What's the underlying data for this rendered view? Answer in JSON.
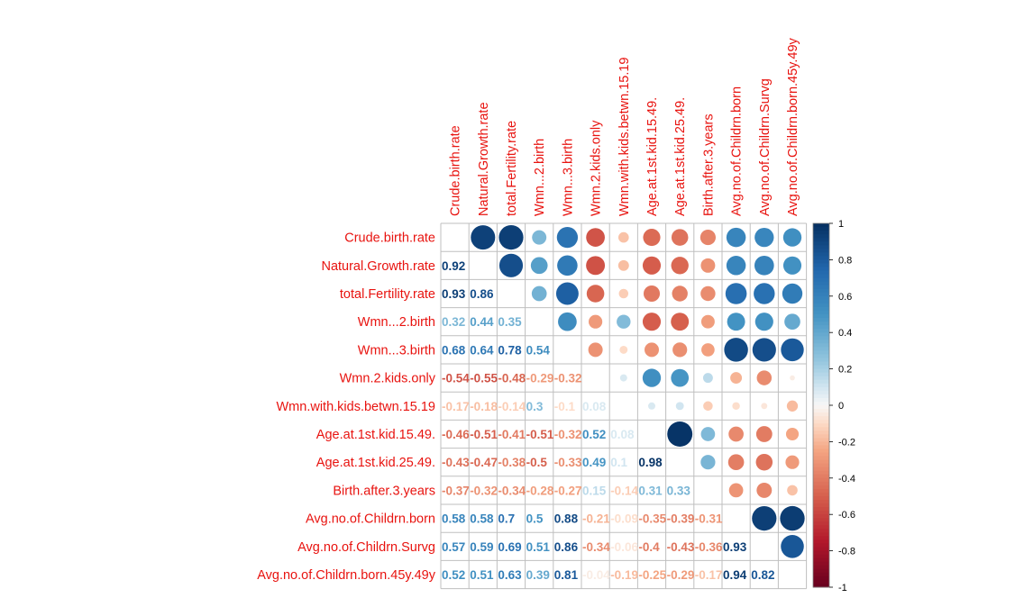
{
  "chart_data": {
    "type": "heatmap",
    "variables": [
      "Crude.birth.rate",
      "Natural.Growth.rate",
      "total.Fertility.rate",
      "Wmn...2.birth",
      "Wmn...3.birth",
      "Wmn.2.kids.only",
      "Wmn.with.kids.betwn.15.19",
      "Age.at.1st.kid.15.49.",
      "Age.at.1st.kid.25.49.",
      "Birth.after.3.years",
      "Avg.no.of.Childrn.born",
      "Avg.no.of.Childrn.Survg",
      "Avg.no.of.Childrn.born.45y.49y"
    ],
    "lower_labels": [
      [],
      [
        "0.92"
      ],
      [
        "0.93",
        "0.86"
      ],
      [
        "0.32",
        "0.44",
        "0.35"
      ],
      [
        "0.68",
        "0.64",
        "0.78",
        "0.54"
      ],
      [
        "-0.54",
        "-0.55",
        "-0.48",
        "-0.29",
        "-0.32"
      ],
      [
        "-0.17",
        "-0.18",
        "-0.14",
        "0.3",
        "-0.1",
        "0.08"
      ],
      [
        "-0.46",
        "-0.51",
        "-0.41",
        "-0.51",
        "-0.32",
        "0.52",
        "0.08"
      ],
      [
        "-0.43",
        "-0.47",
        "-0.38",
        "-0.5",
        "-0.33",
        "0.49",
        "0.1",
        "0.98"
      ],
      [
        "-0.37",
        "-0.32",
        "-0.34",
        "-0.28",
        "-0.27",
        "0.15",
        "-0.14",
        "0.31",
        "0.33"
      ],
      [
        "0.58",
        "0.58",
        "0.7",
        "0.5",
        "0.88",
        "-0.21",
        "-0.09",
        "-0.35",
        "-0.39",
        "-0.31"
      ],
      [
        "0.57",
        "0.59",
        "0.69",
        "0.51",
        "0.86",
        "-0.34",
        "-0.06",
        "-0.4",
        "-0.43",
        "-0.36",
        "0.93"
      ],
      [
        "0.52",
        "0.51",
        "0.63",
        "0.39",
        "0.81",
        "-0.04",
        "-0.19",
        "-0.25",
        "-0.29",
        "-0.17",
        "0.94",
        "0.82"
      ]
    ],
    "upper_values": [
      [
        null,
        0.92,
        0.93,
        0.32,
        0.68,
        -0.54,
        -0.17,
        -0.46,
        -0.43,
        -0.37,
        0.58,
        0.57,
        0.52
      ],
      [
        null,
        null,
        0.86,
        0.44,
        0.64,
        -0.55,
        -0.18,
        -0.51,
        -0.47,
        -0.32,
        0.58,
        0.59,
        0.51
      ],
      [
        null,
        null,
        null,
        0.35,
        0.78,
        -0.48,
        -0.14,
        -0.41,
        -0.38,
        -0.34,
        0.7,
        0.69,
        0.63
      ],
      [
        null,
        null,
        null,
        null,
        0.54,
        -0.29,
        0.3,
        -0.51,
        -0.5,
        -0.28,
        0.5,
        0.51,
        0.39
      ],
      [
        null,
        null,
        null,
        null,
        null,
        -0.32,
        -0.1,
        -0.32,
        -0.33,
        -0.27,
        0.88,
        0.86,
        0.81
      ],
      [
        null,
        null,
        null,
        null,
        null,
        null,
        0.08,
        0.52,
        0.49,
        0.15,
        -0.21,
        -0.34,
        -0.04
      ],
      [
        null,
        null,
        null,
        null,
        null,
        null,
        null,
        0.08,
        0.1,
        -0.14,
        -0.09,
        -0.06,
        -0.19
      ],
      [
        null,
        null,
        null,
        null,
        null,
        null,
        null,
        null,
        0.98,
        0.31,
        -0.35,
        -0.4,
        -0.25
      ],
      [
        null,
        null,
        null,
        null,
        null,
        null,
        null,
        null,
        null,
        0.33,
        -0.39,
        -0.43,
        -0.29
      ],
      [
        null,
        null,
        null,
        null,
        null,
        null,
        null,
        null,
        null,
        null,
        -0.31,
        -0.36,
        -0.17
      ],
      [
        null,
        null,
        null,
        null,
        null,
        null,
        null,
        null,
        null,
        null,
        null,
        0.93,
        0.94
      ],
      [
        null,
        null,
        null,
        null,
        null,
        null,
        null,
        null,
        null,
        null,
        null,
        null,
        0.82
      ],
      [
        null,
        null,
        null,
        null,
        null,
        null,
        null,
        null,
        null,
        null,
        null,
        null,
        null
      ]
    ],
    "colorbar": {
      "ticks": [
        "1",
        "0.8",
        "0.6",
        "0.4",
        "0.2",
        "0",
        "-0.2",
        "-0.4",
        "-0.6",
        "-0.8",
        "-1"
      ],
      "range": [
        -1,
        1
      ]
    },
    "colors": {
      "label": "#e8130f",
      "grid": "#bfbfbf",
      "neg_strong": "#67001f",
      "neg_mid": "#d6604d",
      "neutral": "#f7f7f7",
      "pos_mid": "#4393c3",
      "pos_strong": "#053061"
    }
  }
}
